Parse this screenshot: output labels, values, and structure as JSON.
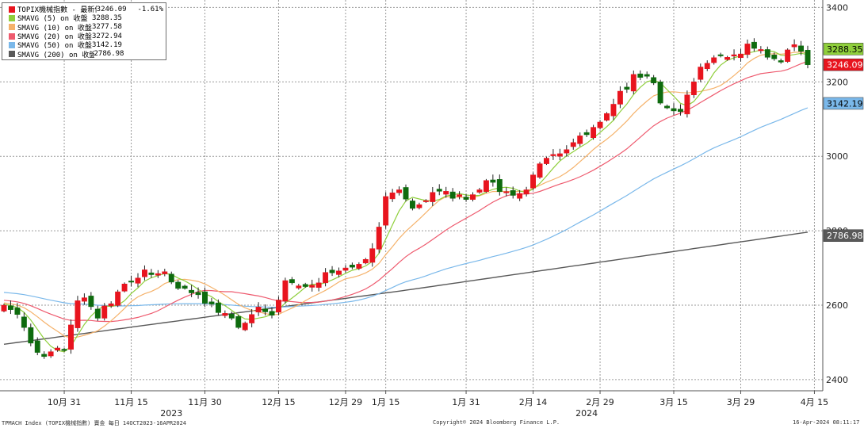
{
  "chart_data": {
    "type": "candlestick",
    "ylim": [
      2370,
      3420
    ],
    "yticks": [
      2400,
      2600,
      2800,
      3000,
      3200,
      3400
    ],
    "xticks": [
      {
        "label": "10月 31",
        "i": 9
      },
      {
        "label": "11月 15",
        "i": 19
      },
      {
        "label": "11月 30",
        "i": 30
      },
      {
        "label": "12月 15",
        "i": 41
      },
      {
        "label": "12月 29",
        "i": 51
      },
      {
        "label": "1月 15",
        "i": 57
      },
      {
        "label": "1月 31",
        "i": 69
      },
      {
        "label": "2月 14",
        "i": 79
      },
      {
        "label": "2月 29",
        "i": 89
      },
      {
        "label": "3月 15",
        "i": 100
      },
      {
        "label": "3月 29",
        "i": 110
      },
      {
        "label": "4月 15",
        "i": 121
      }
    ],
    "years": [
      {
        "label": "2023",
        "i": 25
      },
      {
        "label": "2024",
        "i": 87
      }
    ],
    "series": [
      {
        "name": "TOPIX機械指數 - 最新價",
        "color": "#e8141e",
        "value": "3246.09",
        "change": "-1.61%"
      },
      {
        "name": "SMAVG (5)  on 收盤",
        "color": "#8fcf3c",
        "value": "3288.35"
      },
      {
        "name": "SMAVG (10)  on 收盤",
        "color": "#f5b26b",
        "value": "3277.58"
      },
      {
        "name": "SMAVG (20)  on 收盤",
        "color": "#ee5a6e",
        "value": "3272.94"
      },
      {
        "name": "SMAVG (50)  on 收盤",
        "color": "#7ab8ea",
        "value": "3142.19"
      },
      {
        "name": "SMAVG (200)  on 收盤",
        "color": "#595959",
        "value": "2786.98"
      }
    ],
    "candle_colors": {
      "up": "#e8141e",
      "down": "#0e6b0e"
    },
    "closes": [
      2600,
      2588,
      2575,
      2540,
      2498,
      2473,
      2462,
      2475,
      2485,
      2478,
      2547,
      2612,
      2620,
      2596,
      2565,
      2598,
      2604,
      2636,
      2657,
      2662,
      2673,
      2695,
      2682,
      2685,
      2690,
      2662,
      2645,
      2645,
      2633,
      2628,
      2605,
      2603,
      2580,
      2578,
      2565,
      2540,
      2552,
      2575,
      2595,
      2582,
      2573,
      2614,
      2666,
      2660,
      2652,
      2650,
      2654,
      2660,
      2688,
      2687,
      2692,
      2700,
      2702,
      2710,
      2723,
      2752,
      2810,
      2892,
      2902,
      2910,
      2885,
      2860,
      2870,
      2881,
      2903,
      2906,
      2906,
      2887,
      2897,
      2884,
      2897,
      2910,
      2935,
      2930,
      2905,
      2905,
      2895,
      2900,
      2910,
      2950,
      2980,
      2995,
      3005,
      3007,
      3018,
      3037,
      3055,
      3058,
      3078,
      3092,
      3115,
      3140,
      3175,
      3180,
      3220,
      3212,
      3215,
      3197,
      3143,
      3130,
      3122,
      3120,
      3165,
      3200,
      3240,
      3250,
      3265,
      3270,
      3266,
      3273,
      3275,
      3302,
      3290,
      3287,
      3266,
      3262,
      3253,
      3286,
      3300,
      3282,
      3246
    ]
  },
  "axis": {
    "y_labels": [
      "2400",
      "2600",
      "2800",
      "3000",
      "3200",
      "3400"
    ],
    "value_tags": [
      "3288.35",
      "3246.09",
      "3142.19",
      "2786.98"
    ]
  },
  "footer": {
    "left": "TPMACH Index (TOPIX機械指數) 賣金  每日 14OCT2023-16APR2024",
    "center": "Copyright© 2024 Bloomberg Finance L.P.",
    "right": "16-Apr-2024 08:11:17"
  }
}
